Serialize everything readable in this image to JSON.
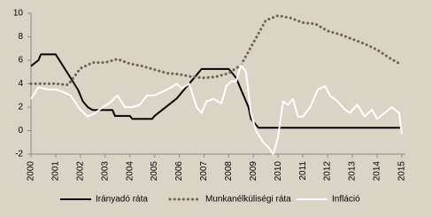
{
  "chart_data": {
    "type": "line",
    "xlim": [
      2000,
      2015.15
    ],
    "xticks": [
      2000,
      2001,
      2002,
      2003,
      2004,
      2005,
      2006,
      2007,
      2008,
      2009,
      2010,
      2011,
      2012,
      2013,
      2014,
      2015
    ],
    "ylim": [
      -2,
      10
    ],
    "yticks": [
      -2,
      0,
      2,
      4,
      6,
      8,
      10
    ],
    "series": [
      {
        "name": "Irányadó ráta",
        "color": "#000000",
        "style": "solid",
        "x": [
          2000,
          2000.3,
          2000.4,
          2001.0,
          2001.3,
          2001.6,
          2001.9,
          2002.1,
          2002.3,
          2002.5,
          2003.3,
          2003.4,
          2004.0,
          2004.1,
          2004.9,
          2005.0,
          2005.3,
          2005.6,
          2005.9,
          2006.2,
          2006.5,
          2006.7,
          2006.9,
          2008.0,
          2008.3,
          2008.6,
          2008.8,
          2008.9,
          2009.1,
          2009.2,
          2015.0
        ],
        "values": [
          5.5,
          6.0,
          6.5,
          6.5,
          5.5,
          4.5,
          3.5,
          2.5,
          2.0,
          1.75,
          1.75,
          1.25,
          1.25,
          1.0,
          1.0,
          1.25,
          1.75,
          2.25,
          2.75,
          3.5,
          4.25,
          4.75,
          5.25,
          5.25,
          4.5,
          3.0,
          2.0,
          1.0,
          0.5,
          0.25,
          0.25
        ]
      },
      {
        "name": "Munkanélküliségi ráta",
        "color": "#6f6150",
        "style": "dotted",
        "x": [
          2000,
          2001,
          2001.5,
          2002,
          2002.5,
          2003,
          2003.5,
          2004,
          2004.5,
          2005,
          2005.5,
          2006,
          2006.5,
          2007,
          2007.5,
          2008,
          2008.5,
          2009,
          2009.5,
          2010,
          2010.5,
          2011,
          2011.5,
          2012,
          2012.5,
          2013,
          2013.5,
          2014,
          2014.5,
          2015
        ],
        "values": [
          4.0,
          4.0,
          3.9,
          5.3,
          5.8,
          5.8,
          6.1,
          5.7,
          5.5,
          5.2,
          4.9,
          4.8,
          4.6,
          4.5,
          4.6,
          4.9,
          5.6,
          7.5,
          9.4,
          9.8,
          9.6,
          9.2,
          9.1,
          8.5,
          8.2,
          7.8,
          7.4,
          6.9,
          6.2,
          5.6
        ]
      },
      {
        "name": "Infláció",
        "color": "#ffffff",
        "style": "solid",
        "x": [
          2000,
          2000.3,
          2000.7,
          2001,
          2001.3,
          2001.6,
          2002,
          2002.3,
          2002.6,
          2002.9,
          2003.2,
          2003.5,
          2003.8,
          2004.1,
          2004.4,
          2004.7,
          2005.0,
          2005.3,
          2005.6,
          2005.9,
          2006.1,
          2006.4,
          2006.7,
          2006.9,
          2007.1,
          2007.4,
          2007.7,
          2007.9,
          2008.1,
          2008.3,
          2008.5,
          2008.7,
          2008.9,
          2009.1,
          2009.4,
          2009.6,
          2009.8,
          2010.0,
          2010.2,
          2010.4,
          2010.6,
          2010.8,
          2011.0,
          2011.3,
          2011.6,
          2011.9,
          2012.1,
          2012.4,
          2012.7,
          2012.9,
          2013.2,
          2013.5,
          2013.8,
          2014.0,
          2014.3,
          2014.6,
          2014.9,
          2015.0
        ],
        "values": [
          2.7,
          3.7,
          3.5,
          3.5,
          3.3,
          3.0,
          1.8,
          1.2,
          1.5,
          2.0,
          2.4,
          3.0,
          2.0,
          2.0,
          2.2,
          3.0,
          3.0,
          3.3,
          3.6,
          4.0,
          3.6,
          4.0,
          2.0,
          1.5,
          2.5,
          2.7,
          2.3,
          3.8,
          4.2,
          4.2,
          5.6,
          5.0,
          1.5,
          0.0,
          -1.0,
          -1.4,
          -2.0,
          -0.5,
          2.5,
          2.2,
          2.7,
          1.2,
          1.2,
          2.0,
          3.5,
          3.8,
          3.0,
          2.5,
          1.8,
          1.5,
          2.2,
          1.2,
          1.8,
          1.0,
          1.5,
          2.0,
          1.5,
          -0.3
        ]
      }
    ]
  }
}
